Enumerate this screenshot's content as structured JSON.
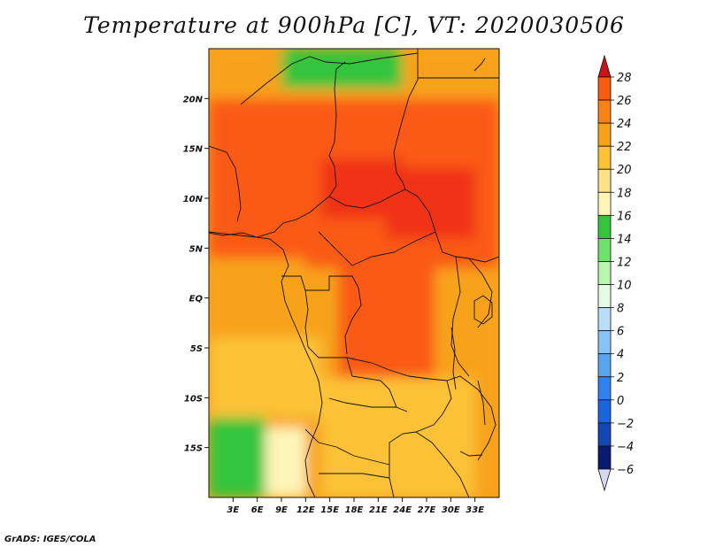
{
  "title": "Temperature at 900hPa [C], VT: 2020030506",
  "footer": "GrADS: IGES/COLA",
  "map": {
    "lon_range": [
      0,
      36
    ],
    "lat_range": [
      -20,
      25
    ],
    "lon_ticks": [
      3,
      6,
      9,
      12,
      15,
      18,
      21,
      24,
      27,
      30,
      33
    ],
    "lon_tick_labels": [
      "3E",
      "6E",
      "9E",
      "12E",
      "15E",
      "18E",
      "21E",
      "24E",
      "27E",
      "30E",
      "33E"
    ],
    "lat_ticks": [
      20,
      15,
      10,
      5,
      0,
      -5,
      -10,
      -15
    ],
    "lat_tick_labels": [
      "20N",
      "15N",
      "10N",
      "5N",
      "EQ",
      "5S",
      "10S",
      "15S"
    ]
  },
  "colorbar": {
    "levels": [
      28,
      26,
      24,
      22,
      20,
      18,
      16,
      14,
      12,
      10,
      8,
      6,
      4,
      2,
      0,
      -2,
      -4,
      -6
    ],
    "labels": [
      "28",
      "26",
      "24",
      "22",
      "20",
      "18",
      "16",
      "14",
      "12",
      "10",
      "8",
      "6",
      "4",
      "2",
      "0",
      "−2",
      "−4",
      "−6"
    ],
    "colors_top_to_bottom": [
      "#f03218",
      "#fa5a14",
      "#fa8214",
      "#f8a21a",
      "#fbc238",
      "#fde18a",
      "#fff5b8",
      "#36c43c",
      "#6fe06c",
      "#b8f5b0",
      "#e4fbe4",
      "#b8defa",
      "#8ac2f5",
      "#5aa4ef",
      "#3282eb",
      "#1a64dc",
      "#1446b4",
      "#0a1a6e"
    ],
    "over_color": "#c81414",
    "under_color": "#d8d8f0"
  },
  "chart_data": {
    "type": "heatmap",
    "title": "Temperature at 900hPa [C], VT: 2020030506",
    "xlabel": "",
    "ylabel": "",
    "variable": "Temperature at 900hPa",
    "units": "C",
    "valid_time": "2020030506",
    "xlim": [
      0,
      36
    ],
    "ylim": [
      -20,
      25
    ],
    "zlim": [
      -6,
      28
    ],
    "regions": [
      {
        "lon": [
          0,
          36
        ],
        "lat": [
          -20,
          25
        ],
        "value": 21
      },
      {
        "lon": [
          0,
          36
        ],
        "lat": [
          3,
          20
        ],
        "value": 24
      },
      {
        "lon": [
          2,
          26
        ],
        "lat": [
          8,
          18
        ],
        "value": 25
      },
      {
        "lon": [
          14,
          24
        ],
        "lat": [
          8,
          14
        ],
        "value": 27
      },
      {
        "lon": [
          22,
          33
        ],
        "lat": [
          6,
          13
        ],
        "value": 27
      },
      {
        "lon": [
          16,
          28
        ],
        "lat": [
          -8,
          4
        ],
        "value": 25
      },
      {
        "lon": [
          0,
          12
        ],
        "lat": [
          -4,
          4
        ],
        "value": 21
      },
      {
        "lon": [
          0,
          14
        ],
        "lat": [
          -12,
          -4
        ],
        "value": 19
      },
      {
        "lon": [
          14,
          33
        ],
        "lat": [
          -20,
          -8
        ],
        "value": 19
      },
      {
        "lon": [
          9,
          24
        ],
        "lat": [
          21,
          25
        ],
        "value": 13
      },
      {
        "lon": [
          0,
          7
        ],
        "lat": [
          -20,
          -12
        ],
        "value": 13
      },
      {
        "lon": [
          7,
          12
        ],
        "lat": [
          -20,
          -13
        ],
        "value": 15
      }
    ]
  }
}
